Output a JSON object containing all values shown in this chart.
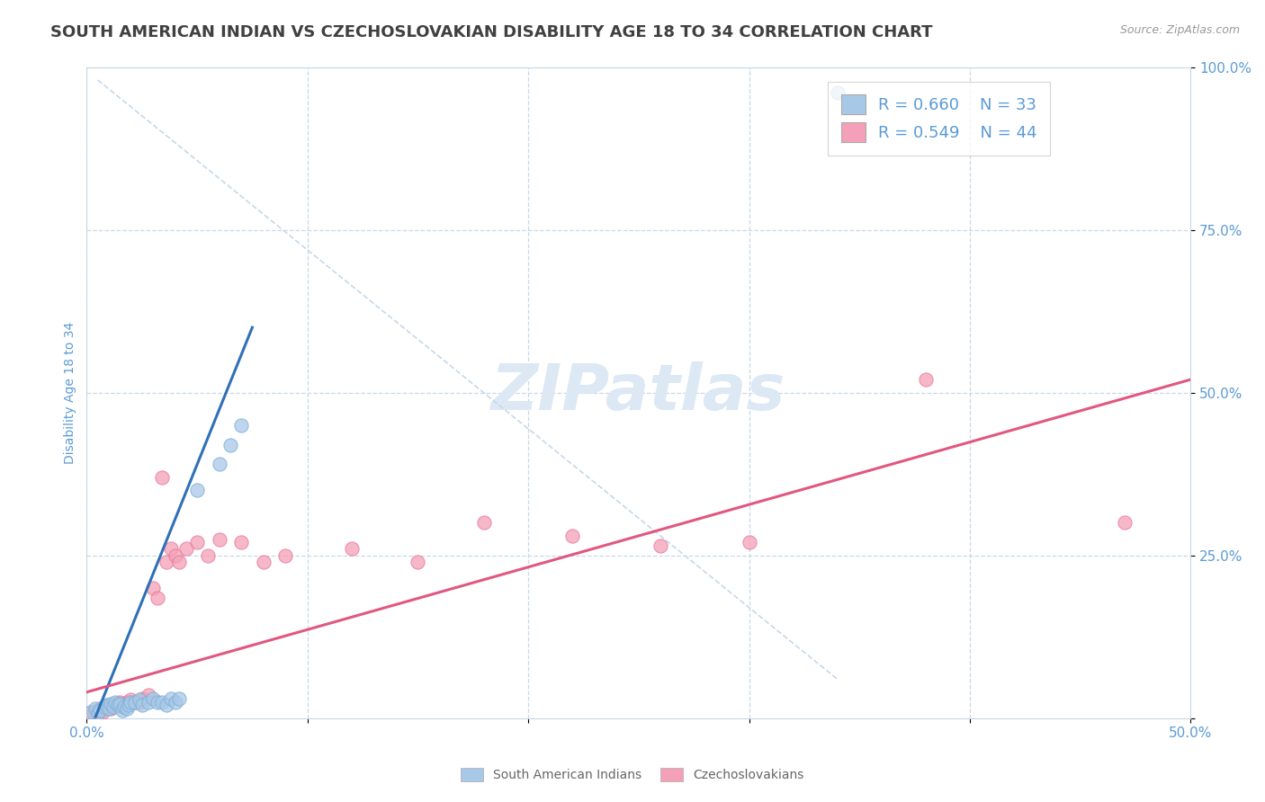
{
  "title": "SOUTH AMERICAN INDIAN VS CZECHOSLOVAKIAN DISABILITY AGE 18 TO 34 CORRELATION CHART",
  "source": "Source: ZipAtlas.com",
  "ylabel": "Disability Age 18 to 34",
  "xlim": [
    0.0,
    0.5
  ],
  "ylim": [
    0.0,
    1.0
  ],
  "xticks": [
    0.0,
    0.1,
    0.2,
    0.3,
    0.4,
    0.5
  ],
  "xtick_labels_show": [
    "0.0%",
    "",
    "",
    "",
    "",
    "50.0%"
  ],
  "yticks": [
    0.0,
    0.25,
    0.5,
    0.75,
    1.0
  ],
  "ytick_labels": [
    "",
    "25.0%",
    "50.0%",
    "75.0%",
    "100.0%"
  ],
  "blue_color": "#a8c8e8",
  "pink_color": "#f4a0b8",
  "blue_edge_color": "#7aafd4",
  "pink_edge_color": "#e87898",
  "blue_line_color": "#3070b8",
  "pink_line_color": "#e05880",
  "title_color": "#404040",
  "axis_label_color": "#5b9bd5",
  "axis_tick_color": "#5b9bd5",
  "watermark": "ZIPatlas",
  "legend_R_blue": "R = 0.660",
  "legend_N_blue": "N = 33",
  "legend_R_pink": "R = 0.549",
  "legend_N_pink": "N = 44",
  "blue_scatter_x": [
    0.002,
    0.004,
    0.005,
    0.006,
    0.008,
    0.009,
    0.01,
    0.011,
    0.012,
    0.013,
    0.014,
    0.015,
    0.016,
    0.017,
    0.018,
    0.019,
    0.02,
    0.022,
    0.024,
    0.025,
    0.028,
    0.03,
    0.032,
    0.034,
    0.036,
    0.038,
    0.04,
    0.042,
    0.05,
    0.06,
    0.065,
    0.07,
    0.34
  ],
  "blue_scatter_y": [
    0.01,
    0.015,
    0.008,
    0.012,
    0.018,
    0.02,
    0.015,
    0.022,
    0.018,
    0.025,
    0.02,
    0.022,
    0.012,
    0.018,
    0.015,
    0.02,
    0.025,
    0.025,
    0.028,
    0.02,
    0.025,
    0.03,
    0.025,
    0.025,
    0.02,
    0.03,
    0.025,
    0.03,
    0.35,
    0.39,
    0.42,
    0.45,
    0.96
  ],
  "pink_scatter_x": [
    0.001,
    0.003,
    0.005,
    0.006,
    0.007,
    0.008,
    0.009,
    0.01,
    0.011,
    0.012,
    0.013,
    0.014,
    0.015,
    0.016,
    0.017,
    0.018,
    0.019,
    0.02,
    0.022,
    0.024,
    0.025,
    0.028,
    0.03,
    0.032,
    0.034,
    0.036,
    0.038,
    0.04,
    0.042,
    0.045,
    0.05,
    0.055,
    0.06,
    0.07,
    0.08,
    0.09,
    0.12,
    0.15,
    0.18,
    0.22,
    0.26,
    0.3,
    0.38,
    0.47
  ],
  "pink_scatter_y": [
    0.008,
    0.01,
    0.012,
    0.015,
    0.01,
    0.015,
    0.018,
    0.02,
    0.015,
    0.018,
    0.022,
    0.02,
    0.025,
    0.018,
    0.02,
    0.025,
    0.022,
    0.028,
    0.025,
    0.025,
    0.03,
    0.035,
    0.2,
    0.185,
    0.37,
    0.24,
    0.26,
    0.25,
    0.24,
    0.26,
    0.27,
    0.25,
    0.275,
    0.27,
    0.24,
    0.25,
    0.26,
    0.24,
    0.3,
    0.28,
    0.265,
    0.27,
    0.52,
    0.3
  ],
  "blue_line_x": [
    0.004,
    0.075
  ],
  "blue_line_y": [
    0.002,
    0.6
  ],
  "pink_line_x": [
    0.0,
    0.5
  ],
  "pink_line_y": [
    0.04,
    0.52
  ],
  "diagonal_line_x": [
    0.005,
    0.34
  ],
  "diagonal_line_y": [
    0.98,
    0.06
  ],
  "background_color": "#ffffff",
  "grid_color": "#c8d8e8",
  "title_fontsize": 13,
  "label_fontsize": 10,
  "tick_fontsize": 11,
  "watermark_fontsize": 52,
  "watermark_color": "#dce8f4",
  "legend_fontsize": 13,
  "source_fontsize": 9
}
